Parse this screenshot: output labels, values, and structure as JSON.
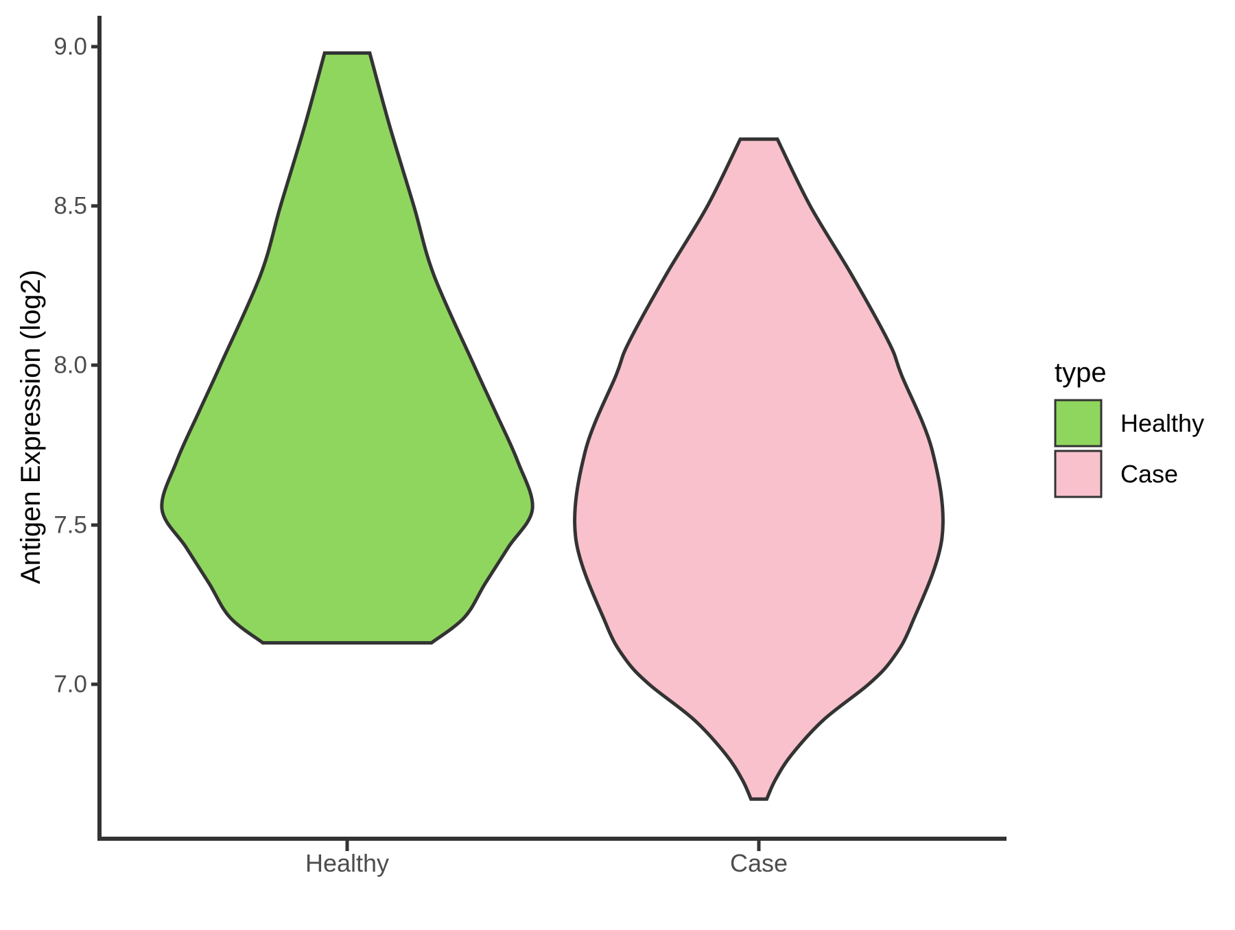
{
  "figure": {
    "y_axis": {
      "title": "Antigen Expression (log2)",
      "tick_labels": [
        "9.0",
        "8.5",
        "8.0",
        "7.5",
        "7.0"
      ]
    },
    "x_axis": {
      "tick_labels": [
        "Healthy",
        "Case"
      ]
    },
    "legend": {
      "title": "type"
    },
    "colors": {
      "outline": "#333333",
      "axis": "#333333",
      "tick_text": "#4d4d4d"
    }
  },
  "chart_data": {
    "type": "violin",
    "title": "",
    "xlabel": "",
    "ylabel": "Antigen Expression (log2)",
    "categories": [
      "Healthy",
      "Case"
    ],
    "y_ticks": [
      9.0,
      8.5,
      8.0,
      7.5,
      7.0
    ],
    "y_axis_range": [
      6.52,
      9.1
    ],
    "grid": "off",
    "legend_position": "right",
    "legend_title": "type",
    "series": [
      {
        "name": "Healthy",
        "fill": "#8FD65E",
        "min": 7.13,
        "max": 8.98,
        "width_peak_at": 7.55,
        "profile": [
          [
            8.98,
            0.122
          ],
          [
            8.75,
            0.23
          ],
          [
            8.5,
            0.36
          ],
          [
            8.285,
            0.467
          ],
          [
            8.0,
            0.685
          ],
          [
            7.855,
            0.8
          ],
          [
            7.7,
            0.92
          ],
          [
            7.55,
            1.0
          ],
          [
            7.43,
            0.87
          ],
          [
            7.316,
            0.745
          ],
          [
            7.21,
            0.633
          ],
          [
            7.13,
            0.455
          ]
        ]
      },
      {
        "name": "Case",
        "fill": "#F8C1CC",
        "min": 6.64,
        "max": 8.71,
        "width_peak_at": 7.46,
        "profile": [
          [
            8.71,
            0.101
          ],
          [
            8.5,
            0.281
          ],
          [
            8.285,
            0.506
          ],
          [
            8.07,
            0.712
          ],
          [
            7.97,
            0.779
          ],
          [
            7.73,
            0.948
          ],
          [
            7.46,
            1.0
          ],
          [
            7.19,
            0.835
          ],
          [
            7.08,
            0.73
          ],
          [
            7.0,
            0.599
          ],
          [
            6.89,
            0.356
          ],
          [
            6.78,
            0.18
          ],
          [
            6.7,
            0.09
          ],
          [
            6.64,
            0.043
          ]
        ]
      }
    ]
  }
}
